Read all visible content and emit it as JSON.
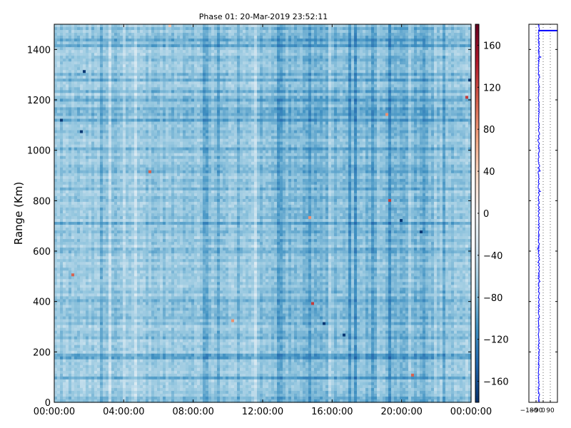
{
  "chart_data": [
    {
      "type": "heatmap",
      "title": "Phase 01: 20-Mar-2019 23:52:11",
      "ylabel": "Range (Km)",
      "xlabel": "",
      "x_tick_labels": [
        "00:00:00",
        "04:00:00",
        "08:00:00",
        "12:00:00",
        "16:00:00",
        "20:00:00",
        "00:00:00"
      ],
      "x_range_hours": [
        0,
        24
      ],
      "ylim": [
        0,
        1500
      ],
      "y_ticks": [
        0,
        200,
        400,
        600,
        800,
        1000,
        1200,
        1400
      ],
      "value_range": [
        -180,
        180
      ],
      "colormap": "RdBu_r",
      "dominant_value_range": [
        -120,
        -30
      ],
      "colorbar": {
        "ticks": [
          -160,
          -120,
          -80,
          -40,
          0,
          40,
          80,
          120,
          160
        ],
        "tick_labels": [
          "−160",
          "−120",
          "−80",
          "−40",
          "0",
          "40",
          "80",
          "120",
          "160"
        ],
        "vmin": -180,
        "vmax": 180,
        "colors": [
          "#08306b",
          "#2166ac",
          "#4393c3",
          "#92c5de",
          "#d1e5f0",
          "#f7f7f7",
          "#fddbc7",
          "#f4a582",
          "#d6604d",
          "#b2182b",
          "#67001f"
        ]
      }
    },
    {
      "type": "line",
      "title": "",
      "ylim": [
        0,
        1500
      ],
      "xlim": [
        -180,
        180
      ],
      "x_tick_labels": [
        "−180",
        "−90",
        "0",
        "90"
      ],
      "x_ticks": [
        -180,
        -90,
        0,
        90
      ],
      "grid": true,
      "series_color": "#0000ff",
      "mean_phase": -55,
      "spike_ranges": [
        1475,
        1370
      ]
    }
  ]
}
